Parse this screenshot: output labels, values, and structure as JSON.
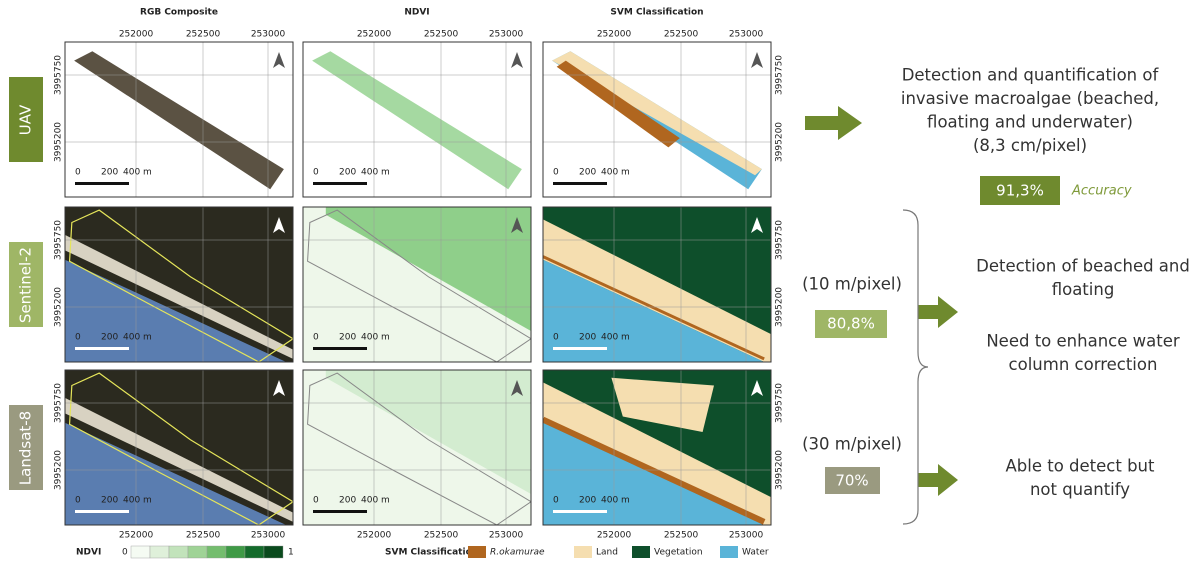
{
  "columns": [
    "RGB Composite",
    "NDVI",
    "SVM Classification"
  ],
  "rows": [
    {
      "label": "UAV",
      "color": "#6f8a2e"
    },
    {
      "label": "Sentinel-2",
      "color": "#9fb666"
    },
    {
      "label": "Landsat-8",
      "color": "#9a9a80"
    }
  ],
  "map_axes": {
    "x_ticks": [
      "252000",
      "252500",
      "253000"
    ],
    "y_ticks": [
      "3995750",
      "3995200"
    ]
  },
  "scale_bar": [
    "0",
    "200",
    "400 m"
  ],
  "results": [
    {
      "lines": [
        "Detection and quantification of",
        "invasive macroalgae (beached,",
        "floating and underwater)",
        "(8,3 cm/pixel)"
      ],
      "accuracy": "91,3%",
      "accuracy_label": "Accuracy"
    },
    {
      "resolution": "(10 m/pixel)",
      "accuracy": "80,8%",
      "lines": [
        "Detection of beached and",
        "floating"
      ],
      "note": [
        "Need to enhance water",
        "column correction"
      ]
    },
    {
      "resolution": "(30 m/pixel)",
      "accuracy": "70%",
      "lines": [
        "Able to detect but",
        "not quantify"
      ]
    }
  ],
  "ndvi_legend": {
    "title": "NDVI",
    "min": "0",
    "max": "1"
  },
  "svm_legend": {
    "title": "SVM Classification",
    "classes": [
      {
        "name": "R.okamurae",
        "color": "#b0661f"
      },
      {
        "name": "Land",
        "color": "#f5deb0"
      },
      {
        "name": "Vegetation",
        "color": "#0e4f2b"
      },
      {
        "name": "Water",
        "color": "#5ab4d8"
      }
    ]
  }
}
